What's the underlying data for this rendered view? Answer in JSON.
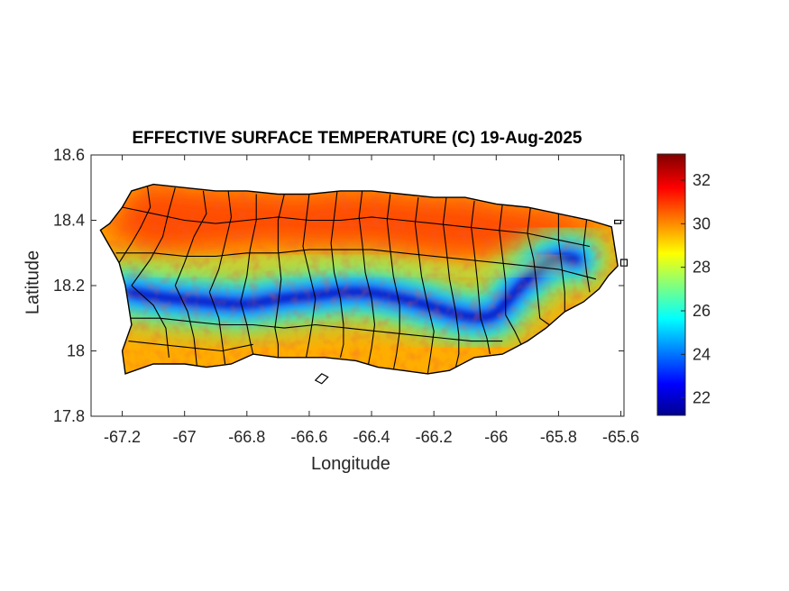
{
  "title": "EFFECTIVE SURFACE TEMPERATURE (C) 19-Aug-2025",
  "xlabel": "Longitude",
  "ylabel": "Latitude",
  "x_ticks": [
    {
      "value": -67.2,
      "label": "-67.2"
    },
    {
      "value": -67,
      "label": "-67"
    },
    {
      "value": -66.8,
      "label": "-66.8"
    },
    {
      "value": -66.6,
      "label": "-66.6"
    },
    {
      "value": -66.4,
      "label": "-66.4"
    },
    {
      "value": -66.2,
      "label": "-66.2"
    },
    {
      "value": -66,
      "label": "-66"
    },
    {
      "value": -65.8,
      "label": "-65.8"
    },
    {
      "value": -65.6,
      "label": "-65.6"
    }
  ],
  "y_ticks": [
    {
      "value": 18.6,
      "label": "18.6"
    },
    {
      "value": 18.4,
      "label": "18.4"
    },
    {
      "value": 18.2,
      "label": "18.2"
    },
    {
      "value": 18,
      "label": "18"
    },
    {
      "value": 17.8,
      "label": "17.8"
    }
  ],
  "xlim": [
    -67.3,
    -65.59
  ],
  "ylim": [
    17.8,
    18.6
  ],
  "colorbar": {
    "colormap": "jet",
    "range": [
      21.2,
      33.2
    ],
    "ticks": [
      {
        "value": 22,
        "label": "22"
      },
      {
        "value": 24,
        "label": "24"
      },
      {
        "value": 26,
        "label": "26"
      },
      {
        "value": 28,
        "label": "28"
      },
      {
        "value": 30,
        "label": "30"
      },
      {
        "value": 32,
        "label": "32"
      }
    ]
  },
  "map": {
    "region": "Puerto Rico",
    "boundaries": "municipalities",
    "boundary_color": "#000000",
    "outline": [
      [
        -67.27,
        18.37
      ],
      [
        -67.24,
        18.39
      ],
      [
        -67.2,
        18.44
      ],
      [
        -67.17,
        18.49
      ],
      [
        -67.1,
        18.51
      ],
      [
        -67.0,
        18.5
      ],
      [
        -66.9,
        18.49
      ],
      [
        -66.8,
        18.49
      ],
      [
        -66.7,
        18.48
      ],
      [
        -66.6,
        18.48
      ],
      [
        -66.5,
        18.49
      ],
      [
        -66.4,
        18.49
      ],
      [
        -66.3,
        18.48
      ],
      [
        -66.2,
        18.47
      ],
      [
        -66.1,
        18.47
      ],
      [
        -66.0,
        18.45
      ],
      [
        -65.9,
        18.44
      ],
      [
        -65.8,
        18.42
      ],
      [
        -65.7,
        18.4
      ],
      [
        -65.63,
        18.38
      ],
      [
        -65.62,
        18.32
      ],
      [
        -65.61,
        18.26
      ],
      [
        -65.64,
        18.23
      ],
      [
        -65.67,
        18.19
      ],
      [
        -65.72,
        18.15
      ],
      [
        -65.78,
        18.12
      ],
      [
        -65.84,
        18.07
      ],
      [
        -65.9,
        18.03
      ],
      [
        -65.98,
        17.99
      ],
      [
        -66.07,
        17.98
      ],
      [
        -66.15,
        17.94
      ],
      [
        -66.22,
        17.93
      ],
      [
        -66.3,
        17.94
      ],
      [
        -66.38,
        17.95
      ],
      [
        -66.45,
        17.97
      ],
      [
        -66.55,
        17.98
      ],
      [
        -66.63,
        17.98
      ],
      [
        -66.7,
        17.98
      ],
      [
        -66.78,
        17.99
      ],
      [
        -66.85,
        17.96
      ],
      [
        -66.93,
        17.95
      ],
      [
        -67.0,
        17.96
      ],
      [
        -67.1,
        17.96
      ],
      [
        -67.19,
        17.93
      ],
      [
        -67.2,
        18.0
      ],
      [
        -67.17,
        18.08
      ],
      [
        -67.18,
        18.14
      ],
      [
        -67.19,
        18.2
      ],
      [
        -67.21,
        18.27
      ],
      [
        -67.24,
        18.32
      ]
    ],
    "islands": [
      [
        [
          -66.58,
          17.91
        ],
        [
          -66.56,
          17.93
        ],
        [
          -66.54,
          17.92
        ],
        [
          -66.56,
          17.9
        ]
      ],
      [
        [
          -65.6,
          18.28
        ],
        [
          -65.58,
          18.28
        ],
        [
          -65.58,
          18.26
        ],
        [
          -65.6,
          18.26
        ]
      ],
      [
        [
          -65.62,
          18.4
        ],
        [
          -65.6,
          18.4
        ],
        [
          -65.6,
          18.39
        ],
        [
          -65.62,
          18.39
        ]
      ]
    ],
    "core_cool_path": [
      [
        -67.18,
        18.18
      ],
      [
        -67.05,
        18.16
      ],
      [
        -66.92,
        18.15
      ],
      [
        -66.8,
        18.14
      ],
      [
        -66.7,
        18.16
      ],
      [
        -66.58,
        18.17
      ],
      [
        -66.5,
        18.18
      ],
      [
        -66.4,
        18.18
      ],
      [
        -66.3,
        18.16
      ],
      [
        -66.22,
        18.14
      ],
      [
        -66.12,
        18.11
      ],
      [
        -66.05,
        18.1
      ],
      [
        -66.0,
        18.11
      ],
      [
        -65.95,
        18.17
      ],
      [
        -65.88,
        18.24
      ],
      [
        -65.8,
        18.29
      ],
      [
        -65.74,
        18.28
      ]
    ],
    "inland_cool_path": [
      [
        -67.1,
        18.25
      ],
      [
        -66.95,
        18.26
      ],
      [
        -66.85,
        18.27
      ],
      [
        -66.7,
        18.28
      ],
      [
        -66.55,
        18.27
      ],
      [
        -66.4,
        18.27
      ],
      [
        -66.25,
        18.25
      ],
      [
        -66.1,
        18.24
      ],
      [
        -65.95,
        18.25
      ],
      [
        -65.8,
        18.27
      ]
    ],
    "municipal_boundaries": [
      [
        [
          -67.12,
          18.51
        ],
        [
          -67.11,
          18.44
        ],
        [
          -67.14,
          18.38
        ],
        [
          -67.17,
          18.33
        ],
        [
          -67.21,
          18.27
        ]
      ],
      [
        [
          -67.03,
          18.5
        ],
        [
          -67.05,
          18.43
        ],
        [
          -67.07,
          18.35
        ],
        [
          -67.11,
          18.28
        ],
        [
          -67.17,
          18.2
        ]
      ],
      [
        [
          -66.94,
          18.49
        ],
        [
          -66.93,
          18.42
        ],
        [
          -66.97,
          18.35
        ],
        [
          -67.0,
          18.27
        ],
        [
          -67.03,
          18.2
        ]
      ],
      [
        [
          -66.86,
          18.49
        ],
        [
          -66.85,
          18.41
        ],
        [
          -66.87,
          18.33
        ],
        [
          -66.89,
          18.25
        ],
        [
          -66.92,
          18.18
        ]
      ],
      [
        [
          -66.77,
          18.48
        ],
        [
          -66.77,
          18.4
        ],
        [
          -66.79,
          18.31
        ],
        [
          -66.8,
          18.23
        ],
        [
          -66.82,
          18.15
        ]
      ],
      [
        [
          -66.68,
          18.48
        ],
        [
          -66.7,
          18.4
        ],
        [
          -66.7,
          18.31
        ],
        [
          -66.69,
          18.22
        ],
        [
          -66.7,
          18.14
        ]
      ],
      [
        [
          -66.6,
          18.48
        ],
        [
          -66.61,
          18.4
        ],
        [
          -66.62,
          18.32
        ],
        [
          -66.6,
          18.24
        ],
        [
          -66.58,
          18.16
        ]
      ],
      [
        [
          -66.51,
          18.49
        ],
        [
          -66.52,
          18.41
        ],
        [
          -66.53,
          18.33
        ],
        [
          -66.52,
          18.24
        ],
        [
          -66.5,
          18.16
        ]
      ],
      [
        [
          -66.43,
          18.49
        ],
        [
          -66.44,
          18.41
        ],
        [
          -66.43,
          18.33
        ],
        [
          -66.42,
          18.24
        ],
        [
          -66.4,
          18.16
        ]
      ],
      [
        [
          -66.34,
          18.48
        ],
        [
          -66.35,
          18.4
        ],
        [
          -66.34,
          18.31
        ],
        [
          -66.33,
          18.23
        ],
        [
          -66.31,
          18.14
        ]
      ],
      [
        [
          -66.25,
          18.47
        ],
        [
          -66.26,
          18.39
        ],
        [
          -66.25,
          18.31
        ],
        [
          -66.24,
          18.23
        ],
        [
          -66.22,
          18.14
        ]
      ],
      [
        [
          -66.16,
          18.47
        ],
        [
          -66.17,
          18.39
        ],
        [
          -66.16,
          18.31
        ],
        [
          -66.15,
          18.22
        ],
        [
          -66.13,
          18.12
        ]
      ],
      [
        [
          -66.07,
          18.46
        ],
        [
          -66.08,
          18.38
        ],
        [
          -66.07,
          18.3
        ],
        [
          -66.06,
          18.21
        ],
        [
          -66.05,
          18.1
        ]
      ],
      [
        [
          -65.98,
          18.45
        ],
        [
          -65.99,
          18.37
        ],
        [
          -65.98,
          18.29
        ],
        [
          -65.97,
          18.21
        ],
        [
          -65.97,
          18.11
        ]
      ],
      [
        [
          -65.89,
          18.44
        ],
        [
          -65.9,
          18.36
        ],
        [
          -65.88,
          18.28
        ],
        [
          -65.87,
          18.2
        ],
        [
          -65.86,
          18.1
        ]
      ],
      [
        [
          -65.8,
          18.42
        ],
        [
          -65.8,
          18.34
        ],
        [
          -65.79,
          18.26
        ],
        [
          -65.78,
          18.18
        ],
        [
          -65.78,
          18.12
        ]
      ],
      [
        [
          -65.71,
          18.4
        ],
        [
          -65.72,
          18.32
        ],
        [
          -65.71,
          18.24
        ],
        [
          -65.7,
          18.18
        ]
      ],
      [
        [
          -67.17,
          18.2
        ],
        [
          -67.1,
          18.14
        ],
        [
          -67.06,
          18.07
        ],
        [
          -67.05,
          17.98
        ]
      ],
      [
        [
          -67.03,
          18.2
        ],
        [
          -66.99,
          18.12
        ],
        [
          -66.97,
          18.04
        ],
        [
          -66.96,
          17.95
        ]
      ],
      [
        [
          -66.92,
          18.18
        ],
        [
          -66.89,
          18.1
        ],
        [
          -66.88,
          18.03
        ],
        [
          -66.87,
          17.96
        ]
      ],
      [
        [
          -66.82,
          18.15
        ],
        [
          -66.8,
          18.08
        ],
        [
          -66.79,
          18.03
        ],
        [
          -66.78,
          17.99
        ]
      ],
      [
        [
          -66.7,
          18.14
        ],
        [
          -66.71,
          18.07
        ],
        [
          -66.7,
          18.02
        ],
        [
          -66.7,
          17.98
        ]
      ],
      [
        [
          -66.58,
          18.16
        ],
        [
          -66.59,
          18.09
        ],
        [
          -66.6,
          18.03
        ],
        [
          -66.61,
          17.98
        ]
      ],
      [
        [
          -66.5,
          18.16
        ],
        [
          -66.49,
          18.08
        ],
        [
          -66.49,
          18.02
        ],
        [
          -66.5,
          17.98
        ]
      ],
      [
        [
          -66.4,
          18.16
        ],
        [
          -66.39,
          18.08
        ],
        [
          -66.4,
          18.01
        ],
        [
          -66.41,
          17.96
        ]
      ],
      [
        [
          -66.31,
          18.14
        ],
        [
          -66.31,
          18.06
        ],
        [
          -66.32,
          17.99
        ],
        [
          -66.33,
          17.94
        ]
      ],
      [
        [
          -66.22,
          18.14
        ],
        [
          -66.2,
          18.06
        ],
        [
          -66.21,
          17.99
        ],
        [
          -66.22,
          17.93
        ]
      ],
      [
        [
          -66.13,
          18.12
        ],
        [
          -66.12,
          18.05
        ],
        [
          -66.12,
          17.99
        ],
        [
          -66.13,
          17.95
        ]
      ],
      [
        [
          -66.05,
          18.1
        ],
        [
          -66.03,
          18.04
        ],
        [
          -66.02,
          17.99
        ]
      ],
      [
        [
          -65.97,
          18.11
        ],
        [
          -65.94,
          18.06
        ],
        [
          -65.92,
          18.02
        ]
      ],
      [
        [
          -65.86,
          18.1
        ],
        [
          -65.83,
          18.08
        ]
      ],
      [
        [
          -67.2,
          18.44
        ],
        [
          -67.1,
          18.42
        ],
        [
          -67.0,
          18.4
        ],
        [
          -66.9,
          18.39
        ],
        [
          -66.8,
          18.4
        ],
        [
          -66.7,
          18.41
        ],
        [
          -66.6,
          18.4
        ],
        [
          -66.5,
          18.4
        ],
        [
          -66.4,
          18.41
        ],
        [
          -66.3,
          18.4
        ],
        [
          -66.2,
          18.39
        ],
        [
          -66.1,
          18.38
        ],
        [
          -66.0,
          18.37
        ],
        [
          -65.9,
          18.36
        ],
        [
          -65.8,
          18.34
        ],
        [
          -65.7,
          18.32
        ]
      ],
      [
        [
          -67.22,
          18.3
        ],
        [
          -67.1,
          18.3
        ],
        [
          -67.0,
          18.29
        ],
        [
          -66.9,
          18.29
        ],
        [
          -66.8,
          18.3
        ],
        [
          -66.7,
          18.3
        ],
        [
          -66.6,
          18.31
        ],
        [
          -66.5,
          18.31
        ],
        [
          -66.4,
          18.31
        ],
        [
          -66.3,
          18.3
        ],
        [
          -66.2,
          18.29
        ],
        [
          -66.1,
          18.28
        ],
        [
          -66.0,
          18.27
        ],
        [
          -65.9,
          18.26
        ],
        [
          -65.8,
          18.25
        ],
        [
          -65.68,
          18.22
        ]
      ],
      [
        [
          -67.18,
          18.1
        ],
        [
          -67.08,
          18.1
        ],
        [
          -66.98,
          18.09
        ],
        [
          -66.88,
          18.08
        ],
        [
          -66.78,
          18.08
        ],
        [
          -66.68,
          18.07
        ],
        [
          -66.58,
          18.08
        ],
        [
          -66.48,
          18.07
        ],
        [
          -66.38,
          18.06
        ],
        [
          -66.28,
          18.05
        ],
        [
          -66.18,
          18.04
        ],
        [
          -66.08,
          18.03
        ],
        [
          -65.98,
          18.03
        ]
      ],
      [
        [
          -67.18,
          18.03
        ],
        [
          -67.08,
          18.02
        ],
        [
          -66.98,
          18.01
        ],
        [
          -66.88,
          18.0
        ],
        [
          -66.78,
          18.02
        ]
      ]
    ]
  }
}
